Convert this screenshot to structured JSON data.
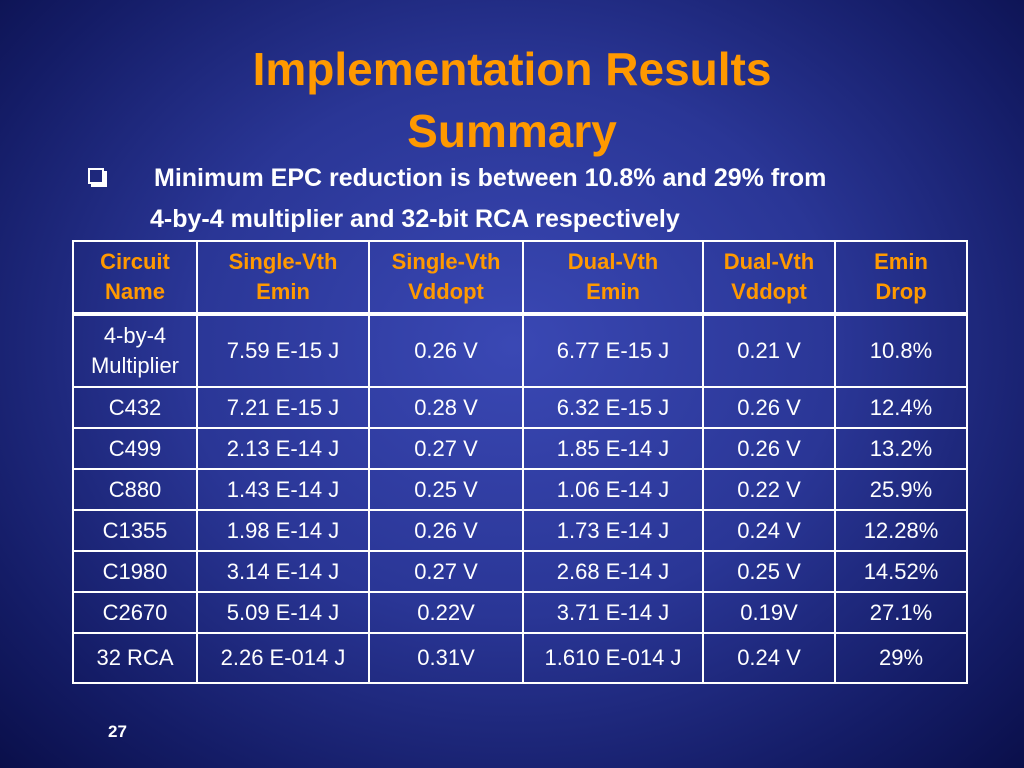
{
  "slide": {
    "title_line1": "Implementation Results",
    "title_line2": "Summary",
    "bullet_line1": "Minimum EPC reduction is between 10.8% and 29% from",
    "bullet_line2": "4-by-4 multiplier and 32-bit RCA respectively",
    "slide_number": "27"
  },
  "colors": {
    "title": "#ff9900",
    "header_text": "#ff9900",
    "body_text": "#ffffff",
    "background": "#2a3696"
  },
  "table": {
    "headers": [
      [
        "Circuit",
        "Name"
      ],
      [
        "Single-Vth",
        "Emin"
      ],
      [
        "Single-Vth",
        "Vddopt"
      ],
      [
        "Dual-Vth",
        "Emin"
      ],
      [
        "Dual-Vth",
        "Vddopt"
      ],
      [
        "Emin",
        "Drop"
      ]
    ],
    "rows": [
      {
        "circuit_lines": [
          "4-by-4",
          "Multiplier"
        ],
        "single_emin": "7.59 E-15 J",
        "single_vdd": "0.26 V",
        "dual_emin": "6.77 E-15 J",
        "dual_vdd": "0.21 V",
        "drop": "10.8%"
      },
      {
        "circuit_lines": [
          "C432"
        ],
        "single_emin": "7.21 E-15 J",
        "single_vdd": "0.28 V",
        "dual_emin": "6.32 E-15 J",
        "dual_vdd": "0.26 V",
        "drop": "12.4%"
      },
      {
        "circuit_lines": [
          "C499"
        ],
        "single_emin": "2.13 E-14 J",
        "single_vdd": "0.27 V",
        "dual_emin": "1.85 E-14 J",
        "dual_vdd": "0.26 V",
        "drop": "13.2%"
      },
      {
        "circuit_lines": [
          "C880"
        ],
        "single_emin": "1.43 E-14 J",
        "single_vdd": "0.25 V",
        "dual_emin": "1.06 E-14 J",
        "dual_vdd": "0.22 V",
        "drop": "25.9%"
      },
      {
        "circuit_lines": [
          "C1355"
        ],
        "single_emin": "1.98 E-14 J",
        "single_vdd": "0.26 V",
        "dual_emin": "1.73 E-14 J",
        "dual_vdd": "0.24 V",
        "drop": "12.28%"
      },
      {
        "circuit_lines": [
          "C1980"
        ],
        "single_emin": "3.14 E-14 J",
        "single_vdd": "0.27 V",
        "dual_emin": "2.68 E-14 J",
        "dual_vdd": "0.25 V",
        "drop": "14.52%"
      },
      {
        "circuit_lines": [
          "C2670"
        ],
        "single_emin": "5.09 E-14 J",
        "single_vdd": "0.22V",
        "dual_emin": "3.71 E-14 J",
        "dual_vdd": "0.19V",
        "drop": "27.1%"
      },
      {
        "circuit_lines": [
          "32 RCA"
        ],
        "single_emin": "2.26 E-014 J",
        "single_vdd": "0.31V",
        "dual_emin": "1.610 E-014 J",
        "dual_vdd": "0.24 V",
        "drop": "29%"
      }
    ]
  }
}
